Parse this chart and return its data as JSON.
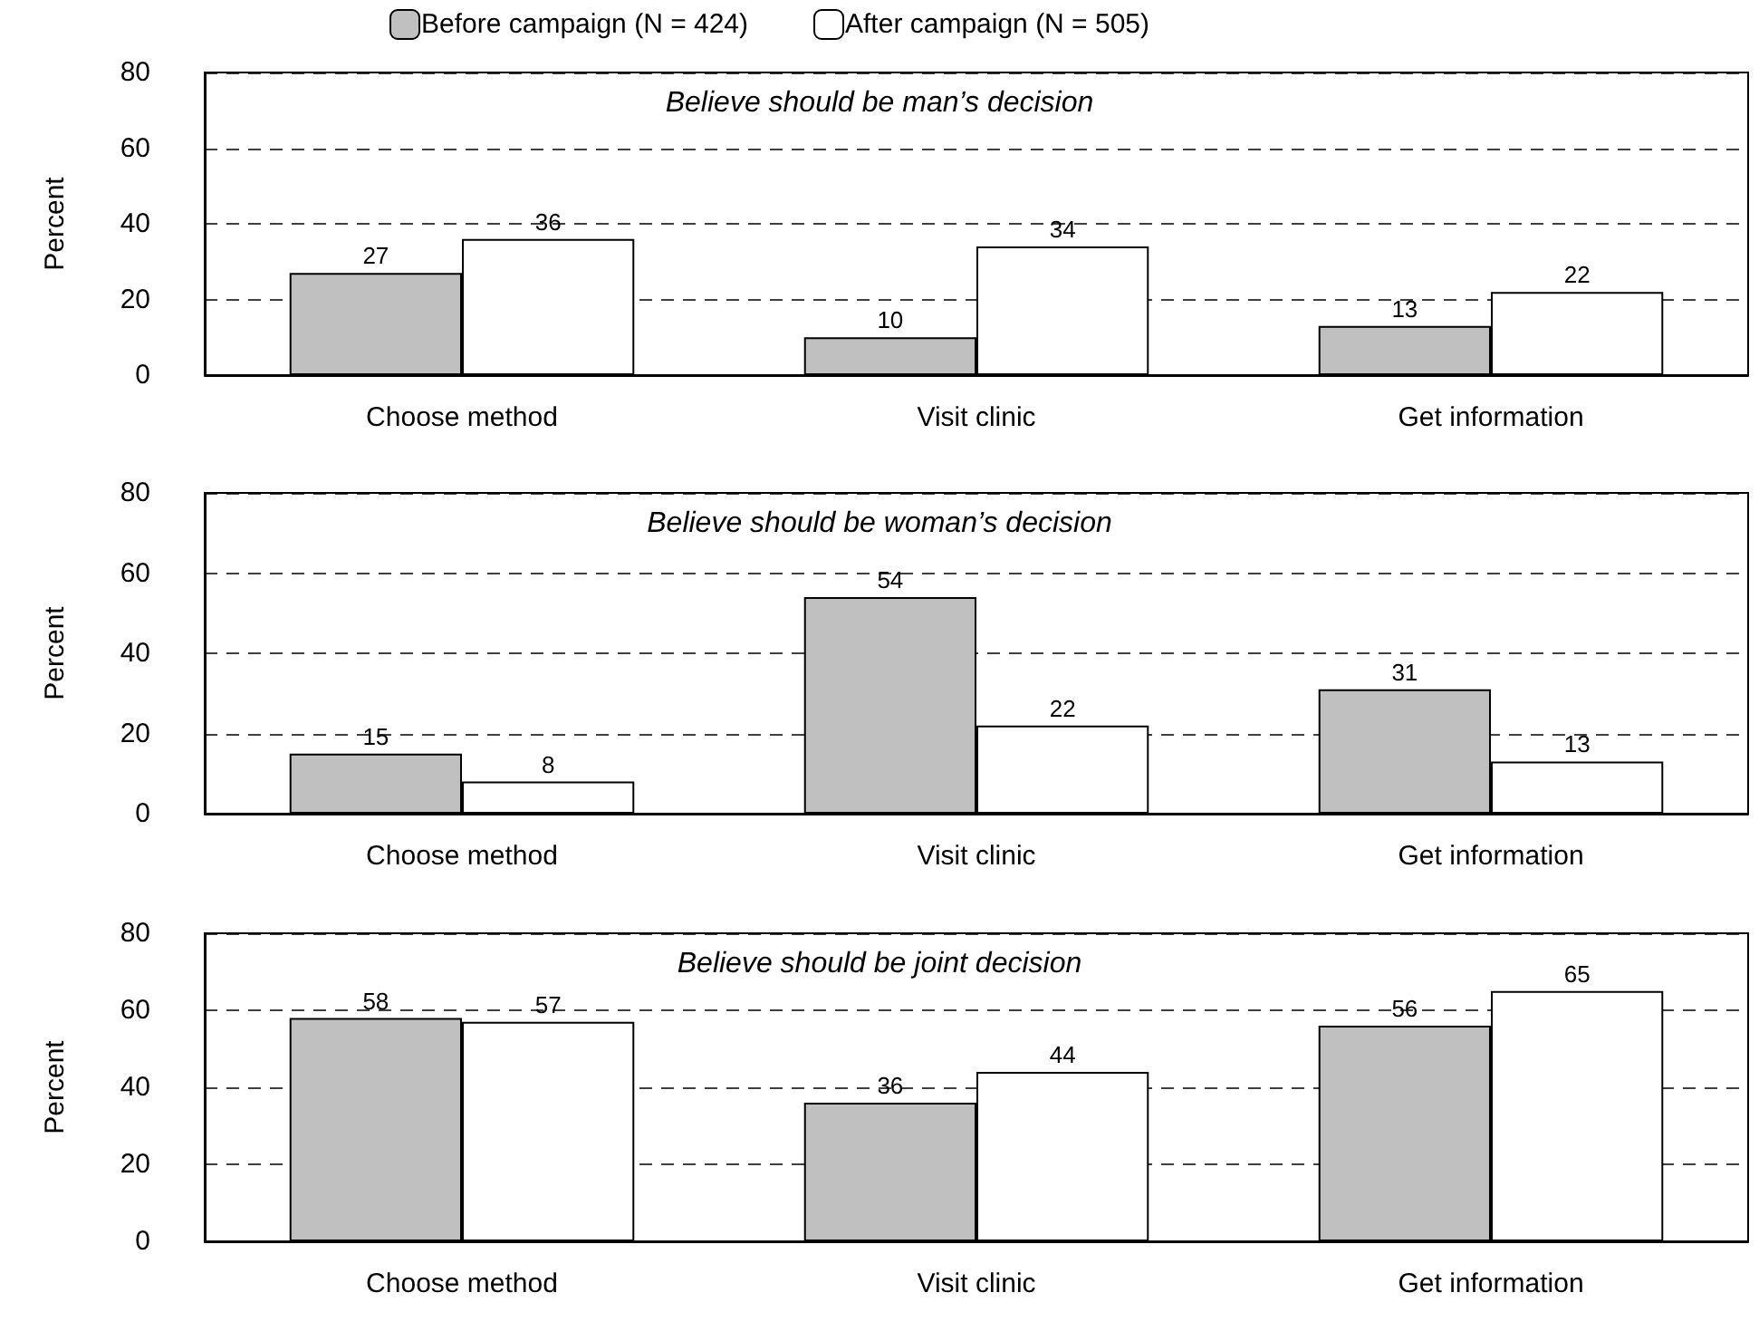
{
  "chart_data": [
    {
      "type": "bar",
      "title": "Believe should be man’s decision",
      "ylabel": "Percent",
      "categories": [
        "Choose method",
        "Visit clinic",
        "Get information"
      ],
      "series": [
        {
          "name": "Before campaign (N = 424)",
          "color": "#c0c0c0",
          "values": [
            27,
            10,
            13
          ]
        },
        {
          "name": "After campaign (N = 505)",
          "color": "#ffffff",
          "values": [
            36,
            34,
            22
          ]
        }
      ],
      "ylim": [
        0,
        80
      ],
      "yticks": [
        0,
        20,
        40,
        60,
        80
      ],
      "grid": "y",
      "legend": "top",
      "data_labels": true
    },
    {
      "type": "bar",
      "title": "Believe should be woman’s decision",
      "ylabel": "Percent",
      "categories": [
        "Choose method",
        "Visit clinic",
        "Get information"
      ],
      "series": [
        {
          "color": "#c0c0c0",
          "values": [
            15,
            54,
            31
          ]
        },
        {
          "color": "#ffffff",
          "values": [
            8,
            22,
            13
          ]
        }
      ],
      "ylim": [
        0,
        80
      ],
      "yticks": [
        0,
        20,
        40,
        60,
        80
      ],
      "grid": "y",
      "legend": false,
      "data_labels": true
    },
    {
      "type": "bar",
      "title": "Believe should be joint decision",
      "ylabel": "Percent",
      "categories": [
        "Choose method",
        "Visit clinic",
        "Get information"
      ],
      "series": [
        {
          "color": "#c0c0c0",
          "values": [
            58,
            36,
            56
          ]
        },
        {
          "color": "#ffffff",
          "values": [
            57,
            44,
            65
          ]
        }
      ],
      "ylim": [
        0,
        80
      ],
      "yticks": [
        0,
        20,
        40,
        60,
        80
      ],
      "grid": "y",
      "legend": false,
      "data_labels": true
    }
  ]
}
